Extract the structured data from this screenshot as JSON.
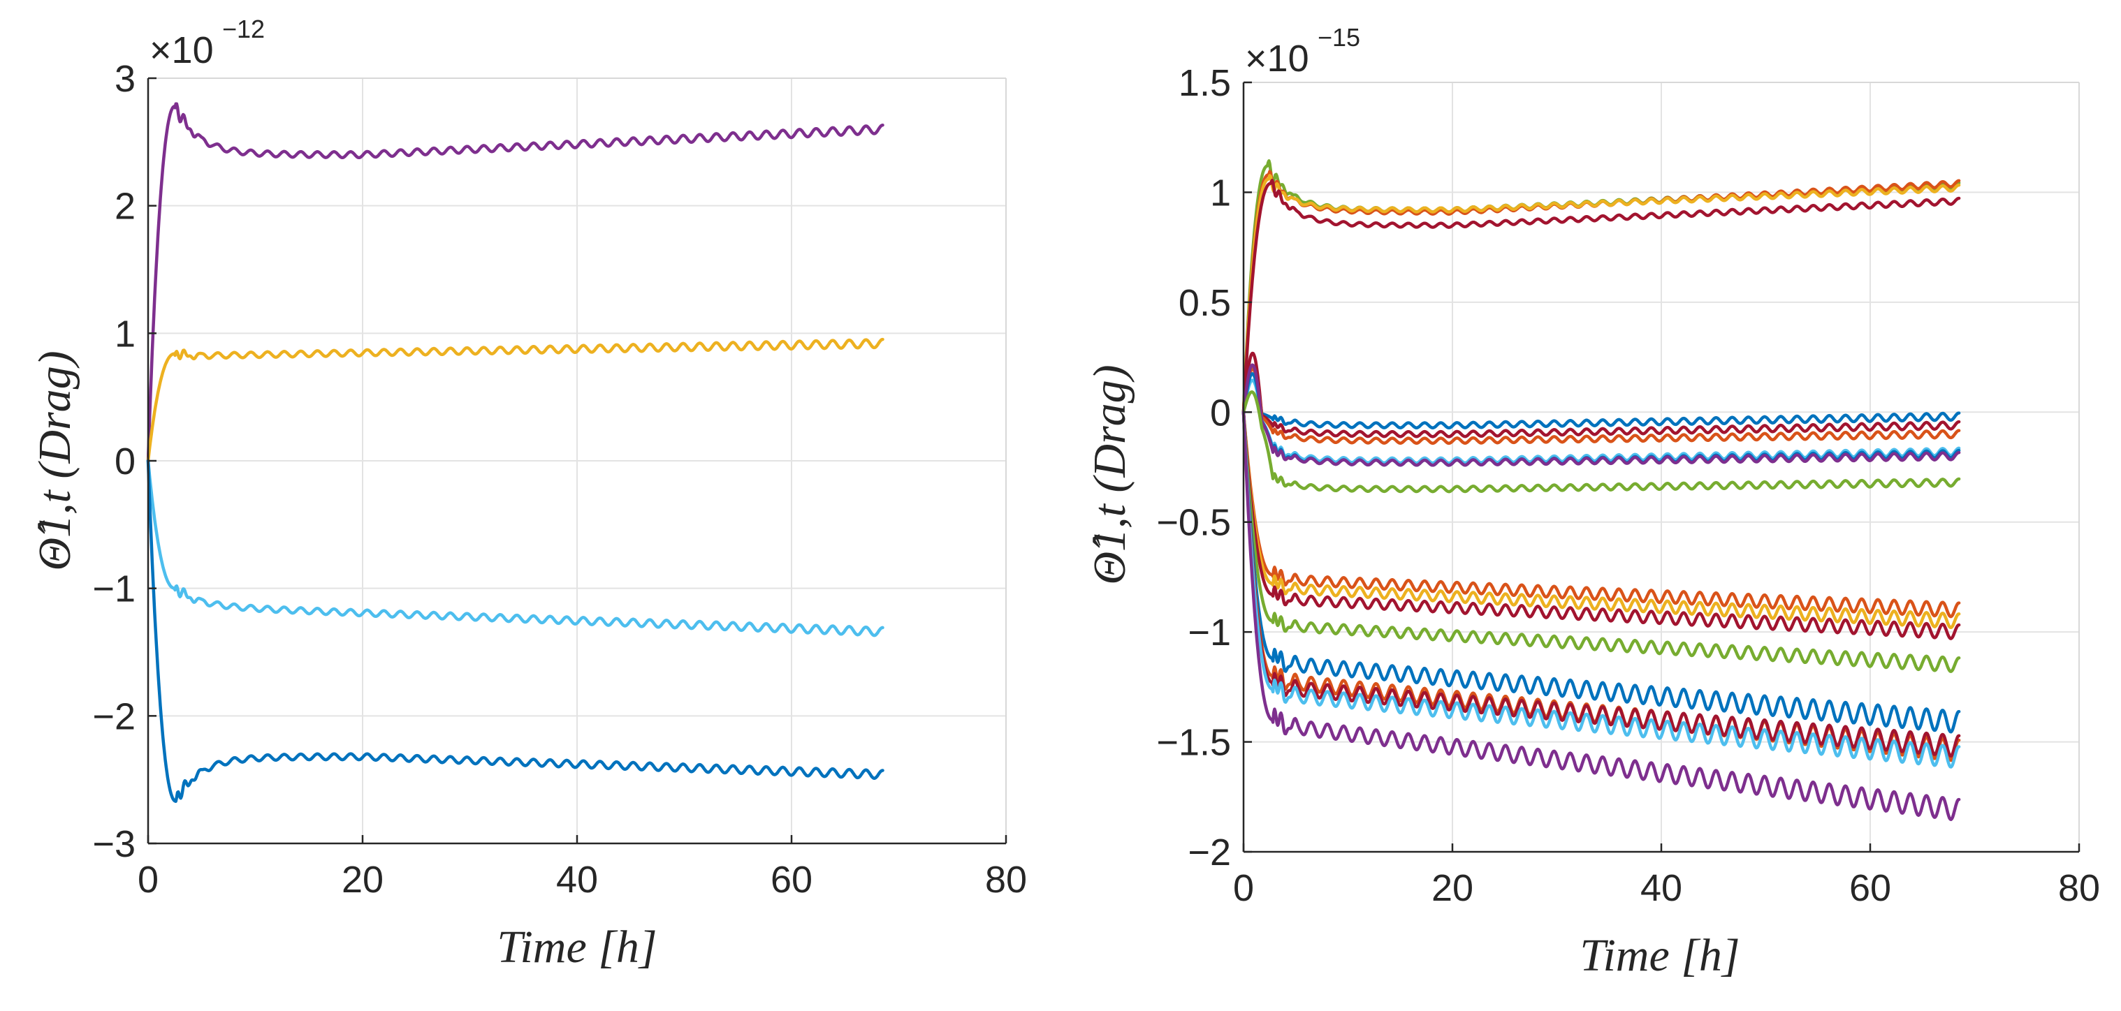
{
  "chart_data": [
    {
      "type": "line",
      "xlabel": "Time [h]",
      "ylabel": "Θ̂1,t (Drag)",
      "exponent_base": "×10",
      "exponent": "−12",
      "xlim": [
        0,
        80
      ],
      "ylim": [
        -3,
        3
      ],
      "x_ticks": [
        "0",
        "20",
        "40",
        "60",
        "80"
      ],
      "y_ticks": [
        "3",
        "2",
        "1",
        "0",
        "−1",
        "−2",
        "−3"
      ],
      "x_tick_values": [
        0,
        20,
        40,
        60,
        80
      ],
      "y_tick_values": [
        3,
        2,
        1,
        0,
        -1,
        -2,
        -3
      ],
      "grid": true,
      "series": [
        {
          "name": "purple",
          "color": "#7E2F8E",
          "peak_t": 2.5,
          "peak": 2.78,
          "settle": 2.4,
          "min_t": 20,
          "final": 2.6,
          "osc": 0.02,
          "noise": 0.08
        },
        {
          "name": "yellow",
          "color": "#EDB120",
          "peak_t": 2.5,
          "peak": 0.84,
          "settle": 0.82,
          "min_t": 3,
          "final": 0.92,
          "osc": 0.02,
          "noise": 0.05
        },
        {
          "name": "light-blue",
          "color": "#4DBEEE",
          "peak_t": 2.5,
          "peak": -1.0,
          "settle": -1.15,
          "min_t": 6,
          "final": -1.34,
          "osc": 0.02,
          "noise": 0.06
        },
        {
          "name": "blue",
          "color": "#0072BD",
          "peak_t": 2.6,
          "peak": -2.67,
          "settle": -2.32,
          "min_t": 20,
          "final": -2.46,
          "osc": 0.02,
          "noise": 0.08
        }
      ]
    },
    {
      "type": "line",
      "xlabel": "Time [h]",
      "ylabel": "Θ̂1,t (Drag)",
      "exponent_base": "×10",
      "exponent": "−15",
      "xlim": [
        0,
        80
      ],
      "ylim": [
        -2,
        1.5
      ],
      "x_ticks": [
        "0",
        "20",
        "40",
        "60",
        "80"
      ],
      "y_ticks": [
        "1.5",
        "1",
        "0.5",
        "0",
        "−0.5",
        "−1",
        "−1.5",
        "−2"
      ],
      "x_tick_values": [
        0,
        20,
        40,
        60,
        80
      ],
      "y_tick_values": [
        1.5,
        1,
        0.5,
        0,
        -0.5,
        -1,
        -1.5,
        -2
      ],
      "grid": true,
      "series": [
        {
          "name": "green-top",
          "color": "#77AC30",
          "peak_t": 2.3,
          "peak": 1.12,
          "settle": 0.92,
          "min_t": 20,
          "final": 1.03,
          "osc": 0.008,
          "noise": 0.05
        },
        {
          "name": "orange-top",
          "color": "#D95319",
          "peak_t": 2.4,
          "peak": 1.08,
          "settle": 0.91,
          "min_t": 20,
          "final": 1.04,
          "osc": 0.008,
          "noise": 0.04
        },
        {
          "name": "yellow-top",
          "color": "#EDB120",
          "peak_t": 2.4,
          "peak": 1.06,
          "settle": 0.92,
          "min_t": 20,
          "final": 1.02,
          "osc": 0.008,
          "noise": 0.04
        },
        {
          "name": "darkred-top",
          "color": "#A2142F",
          "peak_t": 2.6,
          "peak": 1.04,
          "settle": 0.85,
          "min_t": 20,
          "final": 0.96,
          "osc": 0.008,
          "noise": 0.04
        },
        {
          "name": "blue-a",
          "color": "#0072BD",
          "peak_t": 2.8,
          "peak": -0.03,
          "settle": -0.06,
          "min_t": 20,
          "final": -0.02,
          "osc": 0.01,
          "noise": 0.02,
          "pre": 0.2
        },
        {
          "name": "darkred-a",
          "color": "#A2142F",
          "peak_t": 2.8,
          "peak": -0.06,
          "settle": -0.1,
          "min_t": 20,
          "final": -0.06,
          "osc": 0.01,
          "noise": 0.02,
          "pre": 0.27
        },
        {
          "name": "orange-a",
          "color": "#D95319",
          "peak_t": 2.8,
          "peak": -0.09,
          "settle": -0.13,
          "min_t": 20,
          "final": -0.1,
          "osc": 0.01,
          "noise": 0.02,
          "pre": 0.2
        },
        {
          "name": "lightblue-a",
          "color": "#4DBEEE",
          "peak_t": 2.8,
          "peak": -0.16,
          "settle": -0.22,
          "min_t": 20,
          "final": -0.18,
          "osc": 0.01,
          "noise": 0.03,
          "pre": 0.15
        },
        {
          "name": "blue-b",
          "color": "#0072BD",
          "peak_t": 2.8,
          "peak": -0.17,
          "settle": -0.23,
          "min_t": 20,
          "final": -0.19,
          "osc": 0.01,
          "noise": 0.03,
          "pre": 0.18
        },
        {
          "name": "purple-a",
          "color": "#7E2F8E",
          "peak_t": 2.8,
          "peak": -0.18,
          "settle": -0.23,
          "min_t": 20,
          "final": -0.2,
          "osc": 0.01,
          "noise": 0.03,
          "pre": 0.22
        },
        {
          "name": "green-a",
          "color": "#77AC30",
          "peak_t": 2.8,
          "peak": -0.3,
          "settle": -0.35,
          "min_t": 20,
          "final": -0.32,
          "osc": 0.01,
          "noise": 0.03,
          "pre": 0.1
        },
        {
          "name": "orange-b",
          "color": "#D95319",
          "peak_t": 2.8,
          "peak": -0.74,
          "settle": -0.76,
          "min_t": 3,
          "final": -0.9,
          "osc": 0.02,
          "noise": 0.05
        },
        {
          "name": "yellow-b",
          "color": "#EDB120",
          "peak_t": 2.8,
          "peak": -0.78,
          "settle": -0.8,
          "min_t": 3,
          "final": -0.95,
          "osc": 0.02,
          "noise": 0.05
        },
        {
          "name": "darkred-b",
          "color": "#A2142F",
          "peak_t": 2.8,
          "peak": -0.83,
          "settle": -0.85,
          "min_t": 3,
          "final": -1.0,
          "osc": 0.02,
          "noise": 0.05
        },
        {
          "name": "green-b",
          "color": "#77AC30",
          "peak_t": 2.8,
          "peak": -0.95,
          "settle": -0.97,
          "min_t": 3,
          "final": -1.15,
          "osc": 0.02,
          "noise": 0.05
        },
        {
          "name": "blue-c",
          "color": "#0072BD",
          "peak_t": 2.8,
          "peak": -1.12,
          "settle": -1.14,
          "min_t": 3,
          "final": -1.41,
          "osc": 0.03,
          "noise": 0.06
        },
        {
          "name": "orange-c",
          "color": "#D95319",
          "peak_t": 2.8,
          "peak": -1.2,
          "settle": -1.22,
          "min_t": 3,
          "final": -1.54,
          "osc": 0.03,
          "noise": 0.06
        },
        {
          "name": "darkred-c",
          "color": "#A2142F",
          "peak_t": 2.8,
          "peak": -1.23,
          "settle": -1.25,
          "min_t": 3,
          "final": -1.52,
          "osc": 0.03,
          "noise": 0.06
        },
        {
          "name": "lightblue-b",
          "color": "#4DBEEE",
          "peak_t": 2.8,
          "peak": -1.26,
          "settle": -1.28,
          "min_t": 3,
          "final": -1.57,
          "osc": 0.03,
          "noise": 0.06
        },
        {
          "name": "purple-b",
          "color": "#7E2F8E",
          "peak_t": 2.8,
          "peak": -1.4,
          "settle": -1.42,
          "min_t": 3,
          "final": -1.81,
          "osc": 0.03,
          "noise": 0.07
        }
      ]
    }
  ]
}
